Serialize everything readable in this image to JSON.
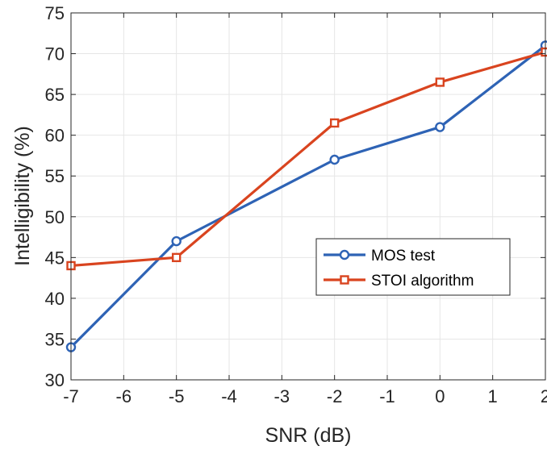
{
  "chart_data": {
    "type": "line",
    "xlabel": "SNR  (dB)",
    "ylabel": "Intelligibility (%)",
    "xlim": [
      -7,
      2
    ],
    "ylim": [
      30,
      75
    ],
    "xticks": [
      -7,
      -6,
      -5,
      -4,
      -3,
      -2,
      -1,
      0,
      1,
      2
    ],
    "xtick_labels": [
      "-7",
      "-6",
      "-5",
      "-4",
      "-3",
      "-2",
      "-1",
      "0",
      "1",
      "2"
    ],
    "yticks": [
      30,
      35,
      40,
      45,
      50,
      55,
      60,
      65,
      70,
      75
    ],
    "ytick_labels": [
      "30",
      "35",
      "40",
      "45",
      "50",
      "55",
      "60",
      "65",
      "70",
      "75"
    ],
    "grid": true,
    "legend_position": "center-right",
    "series": [
      {
        "name": "MOS test",
        "color": "#2E63B5",
        "marker": "circle",
        "x": [
          -7,
          -5,
          -2,
          0,
          2
        ],
        "values": [
          34,
          47,
          57,
          61,
          71
        ]
      },
      {
        "name": "STOI algorithm",
        "color": "#D9441F",
        "marker": "square",
        "x": [
          -7,
          -5,
          -2,
          0,
          2
        ],
        "values": [
          44,
          45,
          61.5,
          66.5,
          70.2
        ]
      }
    ]
  }
}
